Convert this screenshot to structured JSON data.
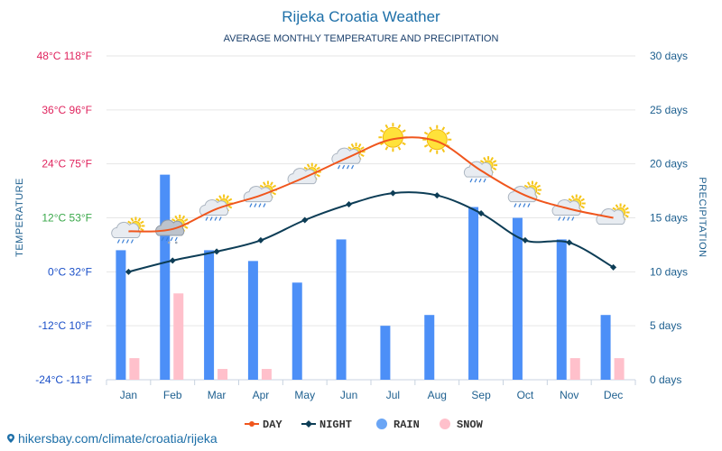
{
  "chart_data": {
    "type": "bar",
    "title": "Rijeka Croatia Weather",
    "subtitle": "AVERAGE MONTHLY TEMPERATURE AND PRECIPITATION",
    "ylabel": "TEMPERATURE",
    "ylabel_right": "PRECIPITATION",
    "categories": [
      "Jan",
      "Feb",
      "Mar",
      "Apr",
      "May",
      "Jun",
      "Jul",
      "Aug",
      "Sep",
      "Oct",
      "Nov",
      "Dec"
    ],
    "y_ticks": [
      {
        "value": 48,
        "label": "48°C 118°F",
        "color": "#e0245e"
      },
      {
        "value": 36,
        "label": "36°C 96°F",
        "color": "#e0245e"
      },
      {
        "value": 24,
        "label": "24°C 75°F",
        "color": "#e0245e"
      },
      {
        "value": 12,
        "label": "12°C 53°F",
        "color": "#3aa84a"
      },
      {
        "value": 0,
        "label": "0°C 32°F",
        "color": "#1a4fc8"
      },
      {
        "value": -12,
        "label": "-12°C 10°F",
        "color": "#1a4fc8"
      },
      {
        "value": -24,
        "label": "-24°C -11°F",
        "color": "#1a4fc8"
      }
    ],
    "y2_ticks": [
      {
        "value": 30,
        "label": "30 days"
      },
      {
        "value": 25,
        "label": "25 days"
      },
      {
        "value": 20,
        "label": "20 days"
      },
      {
        "value": 15,
        "label": "15 days"
      },
      {
        "value": 10,
        "label": "10 days"
      },
      {
        "value": 5,
        "label": "5 days"
      },
      {
        "value": 0,
        "label": "0 days"
      }
    ],
    "ylim": [
      -24,
      48
    ],
    "y2lim": [
      0,
      30
    ],
    "series": [
      {
        "name": "DAY",
        "type": "line",
        "axis": "temperature",
        "color": "#f0561d",
        "values": [
          9,
          9.5,
          14,
          17,
          21,
          25.5,
          29.5,
          29,
          22.5,
          17,
          14,
          12
        ]
      },
      {
        "name": "NIGHT",
        "type": "line",
        "axis": "temperature",
        "color": "#0d3d56",
        "values": [
          0,
          2.5,
          4.5,
          7,
          11.5,
          15,
          17.5,
          17,
          13,
          7,
          6.5,
          1
        ]
      },
      {
        "name": "RAIN",
        "type": "bar",
        "axis": "precipitation",
        "color": "#4c8ff7",
        "legend_color": "#6aa5f5",
        "values": [
          12,
          19,
          12,
          11,
          9,
          13,
          5,
          6,
          16,
          15,
          13,
          6
        ]
      },
      {
        "name": "SNOW",
        "type": "bar",
        "axis": "precipitation",
        "color": "#ffc0cb",
        "values": [
          2,
          8,
          1,
          1,
          0,
          0,
          0,
          0,
          0,
          0,
          2,
          2
        ]
      }
    ],
    "weather_icons": [
      "cloud-sun-rain",
      "cloud-sun-rain-snow",
      "cloud-sun-rain",
      "cloud-sun-rain",
      "cloud-sun",
      "cloud-sun-rain",
      "sun",
      "sun",
      "cloud-sun-rain",
      "cloud-sun-rain",
      "cloud-sun-rain",
      "cloud-sun"
    ],
    "grid": true,
    "legend_position": "bottom"
  },
  "footer": {
    "link_text": "hikersbay.com/climate/croatia/rijeka",
    "link_color": "#1d6fa8"
  }
}
